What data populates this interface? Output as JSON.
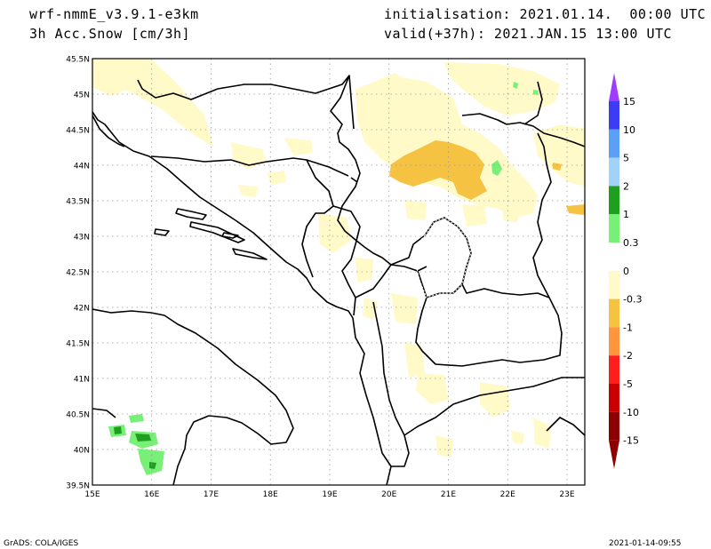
{
  "header": {
    "model": "wrf-nmmE_v3.9.1-e3km",
    "field": "3h Acc.Snow [cm/3h]",
    "initialisation": "initialisation: 2021.01.14.  00:00 UTC",
    "valid": "valid(+37h): 2021.JAN.15 13:00 UTC"
  },
  "map": {
    "lat_labels": [
      "45.5N",
      "45N",
      "44.5N",
      "44N",
      "43.5N",
      "43N",
      "42.5N",
      "42N",
      "41.5N",
      "41N",
      "40.5N",
      "40N",
      "39.5N"
    ],
    "lon_labels": [
      "15E",
      "16E",
      "17E",
      "18E",
      "19E",
      "20E",
      "21E",
      "22E",
      "23E"
    ],
    "lat_range": [
      39.5,
      45.5
    ],
    "lon_range": [
      15.0,
      23.3
    ],
    "grid": "dotted",
    "colors": {
      "light_snow": "#fffac8",
      "moderate_snow": "#f5c242",
      "rain_light": "#78f078",
      "rain_mid": "#1ea01e",
      "land_border": "#000000"
    }
  },
  "legend": {
    "labels": [
      "15",
      "10",
      "5",
      "2",
      "1",
      "0.3",
      "0",
      "-0.3",
      "-1",
      "-2",
      "-5",
      "-10",
      "-15"
    ],
    "colors": [
      "#8c1eff",
      "#3c3cf5",
      "#5aa0f5",
      "#a0d2fa",
      "#1ea01e",
      "#78f078",
      "#ffffff",
      "#fffac8",
      "#f5c242",
      "#ff963c",
      "#ff1e1e",
      "#c80000",
      "#8c0000"
    ],
    "top_arrow_color": "#a03cff",
    "bottom_arrow_color": "#8c0000"
  },
  "footer": {
    "left": "GrADS: COLA/IGES",
    "right": "2021-01-14-09:55"
  }
}
